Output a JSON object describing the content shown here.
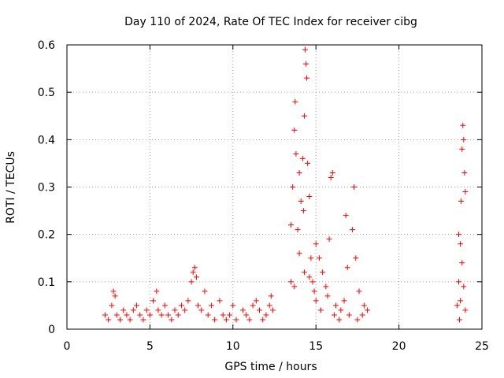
{
  "chart_data": {
    "type": "scatter",
    "title": "Day 110 of 2024, Rate Of TEC Index for receiver cibg",
    "xlabel": "GPS time / hours",
    "ylabel": "ROTI / TECUs",
    "xlim": [
      0,
      25
    ],
    "ylim": [
      0,
      0.6
    ],
    "xticks": [
      0,
      5,
      10,
      15,
      20,
      25
    ],
    "yticks": [
      0,
      0.1,
      0.2,
      0.3,
      0.4,
      0.5,
      0.6
    ],
    "xtick_labels": [
      "0",
      "5",
      "10",
      "15",
      "20",
      "25"
    ],
    "ytick_labels": [
      "0",
      "0.1",
      "0.2",
      "0.3",
      "0.4",
      "0.5",
      "0.6"
    ],
    "grid": true,
    "marker": "+",
    "series": [
      {
        "name": "ROTI",
        "color": "#ff0000",
        "points": [
          [
            2.3,
            0.03
          ],
          [
            2.5,
            0.02
          ],
          [
            2.7,
            0.05
          ],
          [
            2.8,
            0.08
          ],
          [
            2.9,
            0.07
          ],
          [
            3.0,
            0.03
          ],
          [
            3.2,
            0.02
          ],
          [
            3.4,
            0.04
          ],
          [
            3.6,
            0.03
          ],
          [
            3.8,
            0.02
          ],
          [
            4.0,
            0.04
          ],
          [
            4.2,
            0.05
          ],
          [
            4.4,
            0.03
          ],
          [
            4.6,
            0.02
          ],
          [
            4.8,
            0.04
          ],
          [
            5.0,
            0.03
          ],
          [
            5.2,
            0.06
          ],
          [
            5.4,
            0.08
          ],
          [
            5.5,
            0.04
          ],
          [
            5.7,
            0.03
          ],
          [
            5.9,
            0.05
          ],
          [
            6.1,
            0.03
          ],
          [
            6.3,
            0.02
          ],
          [
            6.5,
            0.04
          ],
          [
            6.7,
            0.03
          ],
          [
            6.9,
            0.05
          ],
          [
            7.1,
            0.04
          ],
          [
            7.3,
            0.06
          ],
          [
            7.5,
            0.1
          ],
          [
            7.6,
            0.12
          ],
          [
            7.7,
            0.13
          ],
          [
            7.8,
            0.11
          ],
          [
            7.9,
            0.05
          ],
          [
            8.1,
            0.04
          ],
          [
            8.3,
            0.08
          ],
          [
            8.5,
            0.03
          ],
          [
            8.7,
            0.05
          ],
          [
            8.9,
            0.02
          ],
          [
            9.2,
            0.06
          ],
          [
            9.4,
            0.03
          ],
          [
            9.6,
            0.02
          ],
          [
            9.8,
            0.03
          ],
          [
            10.0,
            0.05
          ],
          [
            10.2,
            0.02
          ],
          [
            10.6,
            0.04
          ],
          [
            10.8,
            0.03
          ],
          [
            11.0,
            0.02
          ],
          [
            11.2,
            0.05
          ],
          [
            11.4,
            0.06
          ],
          [
            11.6,
            0.04
          ],
          [
            11.8,
            0.02
          ],
          [
            12.0,
            0.03
          ],
          [
            12.2,
            0.05
          ],
          [
            12.3,
            0.07
          ],
          [
            12.4,
            0.04
          ],
          [
            13.5,
            0.22
          ],
          [
            13.6,
            0.3
          ],
          [
            13.7,
            0.42
          ],
          [
            13.75,
            0.48
          ],
          [
            13.8,
            0.37
          ],
          [
            13.9,
            0.21
          ],
          [
            14.0,
            0.33
          ],
          [
            14.1,
            0.27
          ],
          [
            14.2,
            0.36
          ],
          [
            14.25,
            0.25
          ],
          [
            14.3,
            0.45
          ],
          [
            14.35,
            0.59
          ],
          [
            14.4,
            0.56
          ],
          [
            14.45,
            0.53
          ],
          [
            14.5,
            0.35
          ],
          [
            14.6,
            0.28
          ],
          [
            14.7,
            0.15
          ],
          [
            14.8,
            0.1
          ],
          [
            14.9,
            0.08
          ],
          [
            15.0,
            0.18
          ],
          [
            15.2,
            0.15
          ],
          [
            15.4,
            0.12
          ],
          [
            15.6,
            0.09
          ],
          [
            15.8,
            0.19
          ],
          [
            15.9,
            0.32
          ],
          [
            16.0,
            0.33
          ],
          [
            16.2,
            0.05
          ],
          [
            16.5,
            0.04
          ],
          [
            16.8,
            0.24
          ],
          [
            16.9,
            0.13
          ],
          [
            17.2,
            0.21
          ],
          [
            17.3,
            0.3
          ],
          [
            17.4,
            0.15
          ],
          [
            17.6,
            0.08
          ],
          [
            17.9,
            0.05
          ],
          [
            18.1,
            0.04
          ],
          [
            13.5,
            0.1
          ],
          [
            13.7,
            0.09
          ],
          [
            14.0,
            0.16
          ],
          [
            14.3,
            0.12
          ],
          [
            14.6,
            0.11
          ],
          [
            15.0,
            0.06
          ],
          [
            15.3,
            0.04
          ],
          [
            15.7,
            0.07
          ],
          [
            16.1,
            0.03
          ],
          [
            16.4,
            0.02
          ],
          [
            16.7,
            0.06
          ],
          [
            17.0,
            0.03
          ],
          [
            17.5,
            0.02
          ],
          [
            17.8,
            0.03
          ],
          [
            23.5,
            0.05
          ],
          [
            23.6,
            0.2
          ],
          [
            23.7,
            0.18
          ],
          [
            23.75,
            0.27
          ],
          [
            23.8,
            0.38
          ],
          [
            23.85,
            0.43
          ],
          [
            23.9,
            0.4
          ],
          [
            23.95,
            0.33
          ],
          [
            24.0,
            0.29
          ],
          [
            23.6,
            0.1
          ],
          [
            23.7,
            0.06
          ],
          [
            23.8,
            0.14
          ],
          [
            23.9,
            0.09
          ],
          [
            24.0,
            0.04
          ],
          [
            23.65,
            0.02
          ]
        ]
      }
    ]
  }
}
